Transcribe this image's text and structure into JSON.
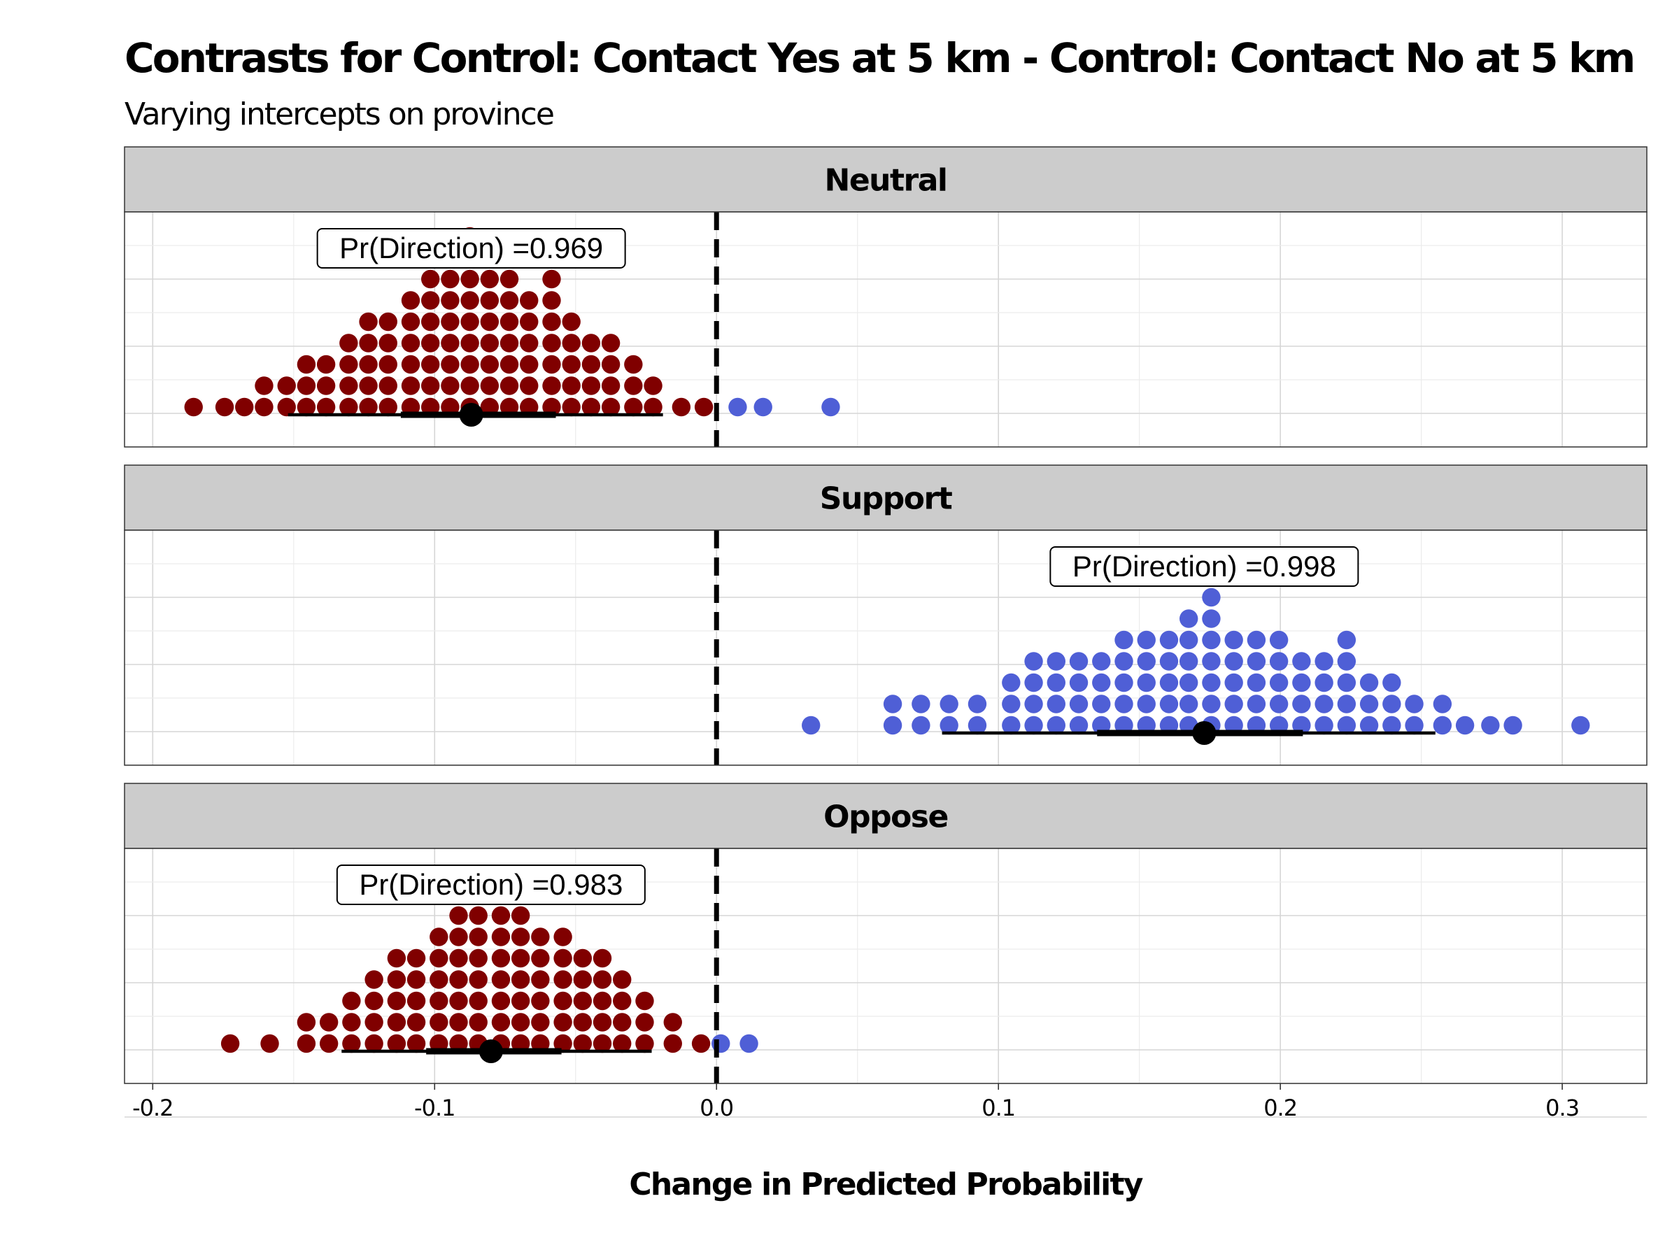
{
  "chart_data": {
    "type": "dotplot",
    "title": "Contrasts for Control: Contact Yes at 5 km - Control: Contact No at 5 km",
    "subtitle": "Varying intercepts on province",
    "xlabel": "Change in Predicted Probability",
    "xlim": [
      -0.21,
      0.33
    ],
    "x_ticks": [
      -0.2,
      -0.1,
      0.0,
      0.1,
      0.2,
      0.3
    ],
    "x_tick_labels": [
      "-0.2",
      "-0.1",
      "0.0",
      "0.1",
      "0.2",
      "0.3"
    ],
    "reference_line": 0.0,
    "colors": {
      "negative": "#800000",
      "positive": "#4f5fd6",
      "strip_bg": "#cccccc",
      "interval": "#000000"
    },
    "panels": [
      {
        "label": "Neutral",
        "annotation": "Pr(Direction) =0.969",
        "annotation_x": -0.087,
        "median": -0.087,
        "interval_66": [
          -0.112,
          -0.057
        ],
        "interval_95": [
          -0.152,
          -0.019
        ],
        "dot_columns": [
          {
            "x": -0.1855,
            "count": 1
          },
          {
            "x": -0.1745,
            "count": 1
          },
          {
            "x": -0.1675,
            "count": 1
          },
          {
            "x": -0.1605,
            "count": 2
          },
          {
            "x": -0.1525,
            "count": 2
          },
          {
            "x": -0.1455,
            "count": 3
          },
          {
            "x": -0.1385,
            "count": 3
          },
          {
            "x": -0.1305,
            "count": 4
          },
          {
            "x": -0.1235,
            "count": 5
          },
          {
            "x": -0.1165,
            "count": 5
          },
          {
            "x": -0.1085,
            "count": 6
          },
          {
            "x": -0.1015,
            "count": 7
          },
          {
            "x": -0.0945,
            "count": 8
          },
          {
            "x": -0.0875,
            "count": 9
          },
          {
            "x": -0.0805,
            "count": 7
          },
          {
            "x": -0.0735,
            "count": 7
          },
          {
            "x": -0.0665,
            "count": 6
          },
          {
            "x": -0.0585,
            "count": 7
          },
          {
            "x": -0.0515,
            "count": 5
          },
          {
            "x": -0.0445,
            "count": 4
          },
          {
            "x": -0.0375,
            "count": 4
          },
          {
            "x": -0.0295,
            "count": 3
          },
          {
            "x": -0.0225,
            "count": 2
          },
          {
            "x": -0.0125,
            "count": 1
          },
          {
            "x": -0.0045,
            "count": 1
          },
          {
            "x": 0.0075,
            "count": 1
          },
          {
            "x": 0.0165,
            "count": 1
          },
          {
            "x": 0.0405,
            "count": 1
          }
        ]
      },
      {
        "label": "Support",
        "annotation": "Pr(Direction) =0.998",
        "annotation_x": 0.173,
        "median": 0.173,
        "interval_66": [
          0.135,
          0.208
        ],
        "interval_95": [
          0.08,
          0.255
        ],
        "dot_columns": [
          {
            "x": 0.0335,
            "count": 1
          },
          {
            "x": 0.0625,
            "count": 2
          },
          {
            "x": 0.0725,
            "count": 2
          },
          {
            "x": 0.0825,
            "count": 2
          },
          {
            "x": 0.0925,
            "count": 2
          },
          {
            "x": 0.1045,
            "count": 3
          },
          {
            "x": 0.1125,
            "count": 4
          },
          {
            "x": 0.1205,
            "count": 4
          },
          {
            "x": 0.1285,
            "count": 4
          },
          {
            "x": 0.1365,
            "count": 4
          },
          {
            "x": 0.1445,
            "count": 5
          },
          {
            "x": 0.1525,
            "count": 5
          },
          {
            "x": 0.1605,
            "count": 5
          },
          {
            "x": 0.1675,
            "count": 6
          },
          {
            "x": 0.1755,
            "count": 7
          },
          {
            "x": 0.1835,
            "count": 5
          },
          {
            "x": 0.1915,
            "count": 5
          },
          {
            "x": 0.1995,
            "count": 5
          },
          {
            "x": 0.2075,
            "count": 4
          },
          {
            "x": 0.2155,
            "count": 4
          },
          {
            "x": 0.2235,
            "count": 5
          },
          {
            "x": 0.2315,
            "count": 3
          },
          {
            "x": 0.2395,
            "count": 3
          },
          {
            "x": 0.2475,
            "count": 2
          },
          {
            "x": 0.2575,
            "count": 2
          },
          {
            "x": 0.2655,
            "count": 1
          },
          {
            "x": 0.2745,
            "count": 1
          },
          {
            "x": 0.2825,
            "count": 1
          },
          {
            "x": 0.3065,
            "count": 1
          }
        ]
      },
      {
        "label": "Oppose",
        "annotation": "Pr(Direction) =0.983",
        "annotation_x": -0.08,
        "median": -0.08,
        "interval_66": [
          -0.103,
          -0.055
        ],
        "interval_95": [
          -0.133,
          -0.023
        ],
        "dot_columns": [
          {
            "x": -0.1725,
            "count": 1
          },
          {
            "x": -0.1585,
            "count": 1
          },
          {
            "x": -0.1455,
            "count": 2
          },
          {
            "x": -0.1375,
            "count": 2
          },
          {
            "x": -0.1295,
            "count": 3
          },
          {
            "x": -0.1215,
            "count": 4
          },
          {
            "x": -0.1135,
            "count": 5
          },
          {
            "x": -0.1065,
            "count": 5
          },
          {
            "x": -0.0985,
            "count": 6
          },
          {
            "x": -0.0915,
            "count": 7
          },
          {
            "x": -0.0845,
            "count": 8
          },
          {
            "x": -0.0765,
            "count": 8
          },
          {
            "x": -0.0695,
            "count": 7
          },
          {
            "x": -0.0625,
            "count": 6
          },
          {
            "x": -0.0545,
            "count": 6
          },
          {
            "x": -0.0475,
            "count": 5
          },
          {
            "x": -0.0405,
            "count": 5
          },
          {
            "x": -0.0335,
            "count": 4
          },
          {
            "x": -0.0255,
            "count": 3
          },
          {
            "x": -0.0155,
            "count": 2
          },
          {
            "x": -0.0055,
            "count": 1
          },
          {
            "x": 0.0015,
            "count": 1
          },
          {
            "x": 0.0115,
            "count": 1
          }
        ]
      }
    ]
  }
}
